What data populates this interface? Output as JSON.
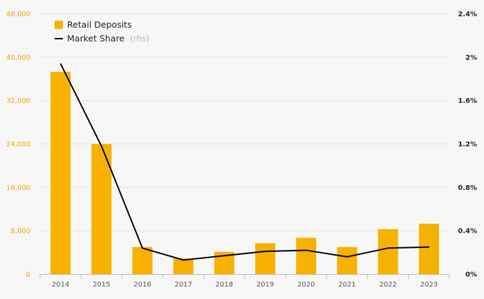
{
  "colors": {
    "bar": "#f7b100",
    "line": "#000000",
    "left_axis_text": "#f0a500",
    "grid": "#e3e3e3",
    "background": "#f7f7f7"
  },
  "chart_data": {
    "type": "bar",
    "categories": [
      "2014",
      "2015",
      "2016",
      "2017",
      "2018",
      "2019",
      "2020",
      "2021",
      "2022",
      "2023"
    ],
    "series": [
      {
        "name": "Retail Deposits",
        "type": "bar",
        "axis": "left",
        "values": [
          37300,
          24000,
          5000,
          2900,
          4100,
          5700,
          6700,
          5000,
          8300,
          9300
        ]
      },
      {
        "name": "Market Share",
        "name_suffix": "(rhs)",
        "type": "line",
        "axis": "right",
        "values": [
          1.94,
          1.18,
          0.24,
          0.13,
          0.17,
          0.21,
          0.22,
          0.16,
          0.24,
          0.25
        ]
      }
    ],
    "y_left": {
      "lim": [
        0,
        48000
      ],
      "ticks": [
        0,
        8000,
        16000,
        24000,
        32000,
        40000,
        48000
      ],
      "tick_labels": [
        "0",
        "8,000",
        "16,000",
        "24,000",
        "32,000",
        "40,000",
        "48,000"
      ]
    },
    "y_right": {
      "lim": [
        0,
        2.4
      ],
      "ticks": [
        0,
        0.4,
        0.8,
        1.2,
        1.6,
        2.0,
        2.4
      ],
      "tick_labels": [
        "0%",
        "0.4%",
        "0.8%",
        "1.2%",
        "1.6%",
        "2%",
        "2.4%"
      ]
    },
    "grid": true,
    "legend": {
      "position": "top-left",
      "items": [
        {
          "label": "Retail Deposits",
          "symbol": "bar"
        },
        {
          "label": "Market Share",
          "suffix": "(rhs)",
          "symbol": "line"
        }
      ]
    }
  }
}
